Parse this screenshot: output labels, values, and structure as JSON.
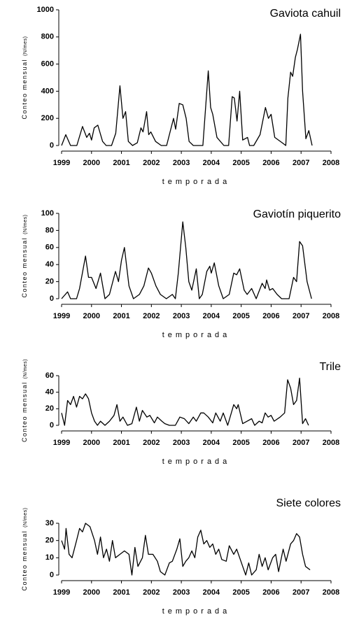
{
  "chart_data": [
    {
      "type": "line",
      "title": "Gaviota cahuil",
      "x_label": "temporada",
      "y_label": "Conteo mensual",
      "y_unit": "(N/mes)",
      "color": "#000000",
      "xlim": [
        1999,
        2008
      ],
      "xticks": [
        1999,
        2000,
        2001,
        2002,
        2003,
        2004,
        2005,
        2006,
        2007,
        2008
      ],
      "ylim": [
        0,
        1000
      ],
      "yticks": [
        0,
        200,
        400,
        600,
        800,
        1000
      ],
      "x": [
        1999.0,
        1999.14,
        1999.3,
        1999.51,
        1999.7,
        1999.84,
        1999.93,
        2000.0,
        2000.09,
        2000.21,
        2000.37,
        2000.49,
        2000.67,
        2000.81,
        2000.95,
        2001.05,
        2001.14,
        2001.23,
        2001.37,
        2001.53,
        2001.65,
        2001.72,
        2001.84,
        2001.91,
        2001.98,
        2002.14,
        2002.33,
        2002.51,
        2002.74,
        2002.81,
        2002.93,
        2003.05,
        2003.16,
        2003.26,
        2003.4,
        2003.53,
        2003.72,
        2003.9,
        2003.98,
        2004.05,
        2004.19,
        2004.42,
        2004.58,
        2004.7,
        2004.77,
        2004.86,
        2004.95,
        2005.05,
        2005.21,
        2005.28,
        2005.42,
        2005.63,
        2005.81,
        2005.91,
        2006.0,
        2006.12,
        2006.37,
        2006.49,
        2006.56,
        2006.65,
        2006.72,
        2006.81,
        2006.88,
        2006.98,
        2007.05,
        2007.16,
        2007.26,
        2007.37
      ],
      "values": [
        0,
        80,
        0,
        0,
        140,
        60,
        90,
        40,
        130,
        150,
        30,
        0,
        0,
        90,
        440,
        200,
        250,
        30,
        0,
        20,
        130,
        100,
        250,
        80,
        100,
        30,
        0,
        0,
        200,
        120,
        310,
        300,
        200,
        30,
        0,
        0,
        0,
        550,
        280,
        230,
        60,
        0,
        0,
        360,
        350,
        180,
        400,
        40,
        60,
        0,
        0,
        80,
        280,
        200,
        230,
        60,
        20,
        0,
        350,
        540,
        510,
        650,
        710,
        820,
        400,
        50,
        110,
        0
      ]
    },
    {
      "type": "line",
      "title": "Gaviotín piquerito",
      "x_label": "temporada",
      "y_label": "Conteo mensual",
      "y_unit": "(N/mes)",
      "color": "#000000",
      "xlim": [
        1999,
        2008
      ],
      "xticks": [
        1999,
        2000,
        2001,
        2002,
        2003,
        2004,
        2005,
        2006,
        2007,
        2008
      ],
      "ylim": [
        0,
        100
      ],
      "yticks": [
        0,
        20,
        40,
        60,
        80,
        100
      ],
      "x": [
        1999.0,
        1999.2,
        1999.3,
        1999.5,
        1999.6,
        1999.8,
        1999.9,
        2000.0,
        2000.15,
        2000.3,
        2000.45,
        2000.6,
        2000.8,
        2000.9,
        2001.0,
        2001.1,
        2001.25,
        2001.4,
        2001.6,
        2001.75,
        2001.9,
        2002.0,
        2002.15,
        2002.3,
        2002.5,
        2002.7,
        2002.8,
        2002.9,
        2003.05,
        2003.15,
        2003.25,
        2003.35,
        2003.5,
        2003.6,
        2003.7,
        2003.85,
        2003.95,
        2004.0,
        2004.1,
        2004.25,
        2004.4,
        2004.6,
        2004.75,
        2004.85,
        2004.95,
        2005.1,
        2005.2,
        2005.35,
        2005.5,
        2005.7,
        2005.8,
        2005.85,
        2005.95,
        2006.05,
        2006.2,
        2006.35,
        2006.6,
        2006.75,
        2006.85,
        2006.95,
        2007.05,
        2007.2,
        2007.35
      ],
      "values": [
        0,
        8,
        0,
        0,
        12,
        50,
        25,
        25,
        12,
        30,
        0,
        5,
        32,
        20,
        45,
        60,
        15,
        0,
        5,
        15,
        36,
        30,
        15,
        5,
        0,
        5,
        0,
        30,
        90,
        60,
        20,
        10,
        35,
        0,
        5,
        32,
        38,
        30,
        42,
        15,
        0,
        5,
        30,
        28,
        35,
        10,
        5,
        12,
        0,
        18,
        12,
        22,
        10,
        12,
        5,
        0,
        0,
        25,
        20,
        67,
        62,
        20,
        0
      ]
    },
    {
      "type": "line",
      "title": "Trile",
      "x_label": "temporada",
      "y_label": "Conteo mensual",
      "y_unit": "(N/mes)",
      "color": "#000000",
      "xlim": [
        1999,
        2008
      ],
      "xticks": [
        1999,
        2000,
        2001,
        2002,
        2003,
        2004,
        2005,
        2006,
        2007,
        2008
      ],
      "ylim": [
        0,
        60
      ],
      "yticks": [
        0,
        20,
        40,
        60
      ],
      "x": [
        1999.0,
        1999.1,
        1999.2,
        1999.3,
        1999.4,
        1999.5,
        1999.6,
        1999.7,
        1999.8,
        1999.9,
        2000.0,
        2000.1,
        2000.2,
        2000.3,
        2000.45,
        2000.6,
        2000.75,
        2000.85,
        2000.95,
        2001.05,
        2001.2,
        2001.35,
        2001.5,
        2001.6,
        2001.7,
        2001.85,
        2001.95,
        2002.1,
        2002.2,
        2002.35,
        2002.45,
        2002.6,
        2002.8,
        2002.95,
        2003.1,
        2003.25,
        2003.4,
        2003.5,
        2003.65,
        2003.75,
        2003.9,
        2004.05,
        2004.15,
        2004.3,
        2004.4,
        2004.55,
        2004.75,
        2004.85,
        2004.9,
        2005.05,
        2005.2,
        2005.35,
        2005.45,
        2005.6,
        2005.7,
        2005.8,
        2005.9,
        2006.0,
        2006.1,
        2006.3,
        2006.45,
        2006.55,
        2006.65,
        2006.75,
        2006.85,
        2006.95,
        2007.05,
        2007.15,
        2007.25
      ],
      "values": [
        15,
        0,
        30,
        25,
        35,
        22,
        35,
        32,
        38,
        32,
        15,
        5,
        0,
        5,
        0,
        5,
        12,
        25,
        5,
        10,
        0,
        2,
        22,
        5,
        18,
        10,
        12,
        3,
        10,
        5,
        2,
        0,
        0,
        10,
        8,
        2,
        10,
        5,
        15,
        15,
        10,
        3,
        15,
        5,
        15,
        0,
        25,
        20,
        25,
        2,
        5,
        8,
        0,
        5,
        3,
        15,
        10,
        12,
        5,
        10,
        15,
        55,
        45,
        25,
        30,
        57,
        2,
        8,
        0
      ]
    },
    {
      "type": "line",
      "title": "Siete colores",
      "x_label": "temporada",
      "y_label": "Conteo mensual",
      "y_unit": "(N/mes)",
      "color": "#000000",
      "xlim": [
        1999,
        2008
      ],
      "xticks": [
        1999,
        2000,
        2001,
        2002,
        2003,
        2004,
        2005,
        2006,
        2007,
        2008
      ],
      "ylim": [
        0,
        30
      ],
      "yticks": [
        0,
        10,
        20,
        30
      ],
      "x": [
        1999.0,
        1999.1,
        1999.15,
        1999.25,
        1999.35,
        1999.5,
        1999.6,
        1999.7,
        1999.8,
        1999.95,
        2000.1,
        2000.2,
        2000.3,
        2000.4,
        2000.5,
        2000.6,
        2000.7,
        2000.8,
        2000.95,
        2001.1,
        2001.25,
        2001.35,
        2001.45,
        2001.55,
        2001.7,
        2001.8,
        2001.9,
        2002.05,
        2002.2,
        2002.3,
        2002.45,
        2002.6,
        2002.7,
        2002.85,
        2002.95,
        2003.05,
        2003.15,
        2003.25,
        2003.35,
        2003.45,
        2003.55,
        2003.65,
        2003.75,
        2003.85,
        2003.95,
        2004.05,
        2004.15,
        2004.25,
        2004.35,
        2004.5,
        2004.6,
        2004.75,
        2004.85,
        2004.95,
        2005.05,
        2005.15,
        2005.25,
        2005.35,
        2005.5,
        2005.6,
        2005.7,
        2005.8,
        2005.9,
        2006.05,
        2006.15,
        2006.25,
        2006.4,
        2006.5,
        2006.65,
        2006.75,
        2006.85,
        2006.95,
        2007.05,
        2007.15,
        2007.3
      ],
      "values": [
        20,
        15,
        27,
        12,
        10,
        20,
        27,
        25,
        30,
        28,
        20,
        12,
        22,
        10,
        15,
        8,
        20,
        10,
        12,
        14,
        12,
        0,
        16,
        5,
        10,
        23,
        12,
        12,
        8,
        2,
        0,
        7,
        8,
        15,
        21,
        5,
        8,
        10,
        14,
        10,
        22,
        26,
        18,
        20,
        16,
        18,
        12,
        15,
        9,
        8,
        17,
        12,
        15,
        10,
        5,
        0,
        7,
        0,
        3,
        12,
        5,
        10,
        3,
        10,
        12,
        2,
        15,
        8,
        18,
        20,
        24,
        22,
        12,
        5,
        3
      ]
    }
  ]
}
